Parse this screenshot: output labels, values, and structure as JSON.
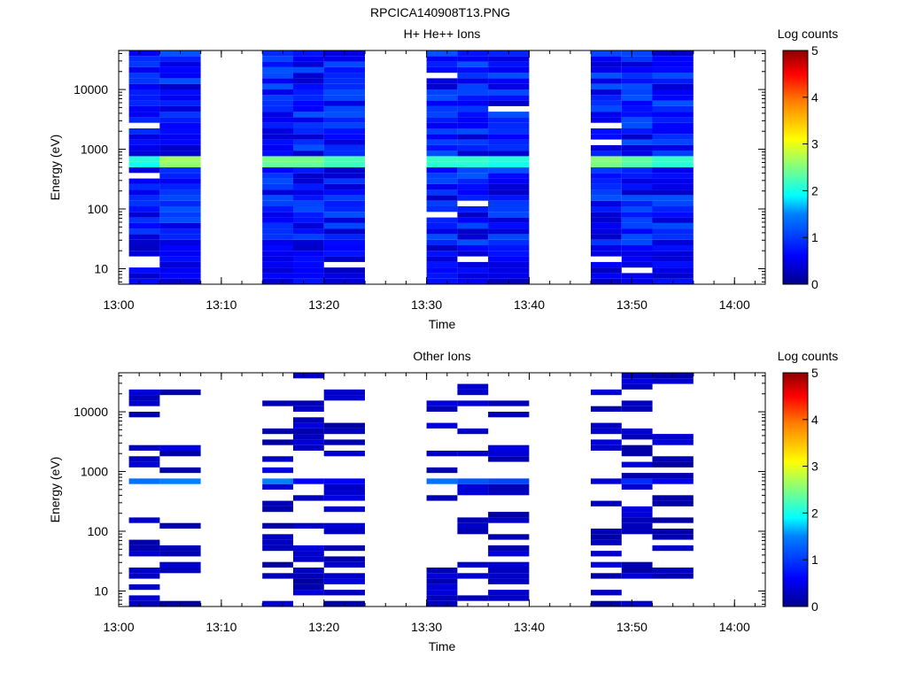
{
  "figure_title": "RPCICA140908T13.PNG",
  "chart_data": [
    {
      "type": "heatmap",
      "title": "H+ He++ Ions",
      "xlabel": "Time",
      "ylabel": "Energy (eV)",
      "x_ticks": [
        "13:00",
        "13:10",
        "13:20",
        "13:30",
        "13:40",
        "13:50",
        "14:00"
      ],
      "x_range": [
        "13:00",
        "14:03"
      ],
      "y_scale": "log",
      "y_ticks": [
        "10",
        "100",
        "1000",
        "10000"
      ],
      "y_range": [
        5.5,
        45000
      ],
      "colorbar": {
        "label": "Log counts",
        "range": [
          0,
          5
        ],
        "ticks": [
          "0",
          "1",
          "2",
          "3",
          "4",
          "5"
        ]
      },
      "time_columns": [
        {
          "start": "13:01",
          "end": "13:04"
        },
        {
          "start": "13:04",
          "end": "13:08"
        },
        {
          "start": "13:14",
          "end": "13:17"
        },
        {
          "start": "13:17",
          "end": "13:20"
        },
        {
          "start": "13:20",
          "end": "13:24"
        },
        {
          "start": "13:30",
          "end": "13:33"
        },
        {
          "start": "13:33",
          "end": "13:36"
        },
        {
          "start": "13:36",
          "end": "13:40"
        },
        {
          "start": "13:46",
          "end": "13:49"
        },
        {
          "start": "13:49",
          "end": "13:52"
        },
        {
          "start": "13:52",
          "end": "13:56"
        }
      ],
      "features": {
        "band_energy_eV": [
          550,
          750
        ],
        "band_log_counts": [
          2.2,
          2.8,
          2.6,
          2.6,
          2.4,
          2.3,
          2.3,
          2.2,
          2.7,
          2.5,
          2.3
        ]
      }
    },
    {
      "type": "heatmap",
      "title": "Other Ions",
      "xlabel": "Time",
      "ylabel": "Energy (eV)",
      "x_ticks": [
        "13:00",
        "13:10",
        "13:20",
        "13:30",
        "13:40",
        "13:50",
        "14:00"
      ],
      "x_range": [
        "13:00",
        "14:03"
      ],
      "y_scale": "log",
      "y_ticks": [
        "10",
        "100",
        "1000",
        "10000"
      ],
      "y_range": [
        5.5,
        45000
      ],
      "colorbar": {
        "label": "Log counts",
        "range": [
          0,
          5
        ],
        "ticks": [
          "0",
          "1",
          "2",
          "3",
          "4",
          "5"
        ]
      },
      "time_columns": [
        {
          "start": "13:01",
          "end": "13:04"
        },
        {
          "start": "13:04",
          "end": "13:08"
        },
        {
          "start": "13:14",
          "end": "13:17"
        },
        {
          "start": "13:17",
          "end": "13:20"
        },
        {
          "start": "13:20",
          "end": "13:24"
        },
        {
          "start": "13:30",
          "end": "13:33"
        },
        {
          "start": "13:33",
          "end": "13:36"
        },
        {
          "start": "13:36",
          "end": "13:40"
        },
        {
          "start": "13:46",
          "end": "13:49"
        },
        {
          "start": "13:49",
          "end": "13:52"
        },
        {
          "start": "13:52",
          "end": "13:56"
        }
      ],
      "features": {
        "band_energy_eV": [
          560,
          720
        ],
        "band_log_counts": [
          1.4,
          1.5,
          1.5,
          0.6,
          0.6,
          1.4,
          1.2,
          1.1,
          0.4,
          0.9,
          0.5
        ]
      }
    }
  ]
}
